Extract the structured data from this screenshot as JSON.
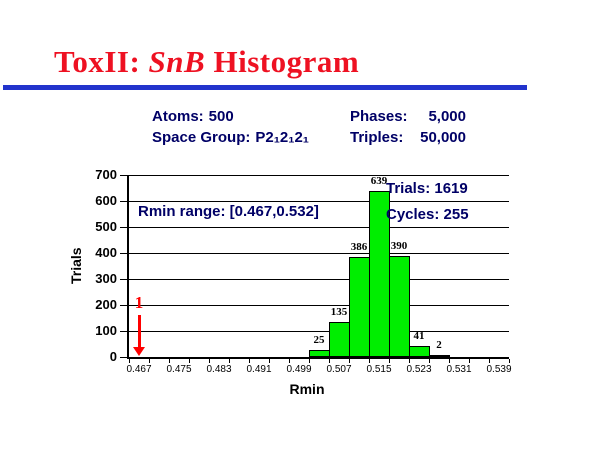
{
  "colors": {
    "bar-green": "#00EE00",
    "arrow-red": "#FF0000",
    "text-navy": "#000066",
    "title-red": "#EE1122",
    "rule-blue": "#2233CC"
  },
  "slide": {
    "title": {
      "prefix": "ToxII: ",
      "emphasis": "SnB",
      "suffix": " Histogram"
    },
    "params": {
      "left": [
        {
          "label": "Atoms:",
          "value": "500"
        },
        {
          "label": "Space Group:",
          "value": "P2₁2₁2₁"
        }
      ],
      "right": [
        {
          "label": "Phases:",
          "value": "5,000"
        },
        {
          "label": "Triples:",
          "value": "50,000"
        }
      ]
    }
  },
  "chart_data": {
    "type": "bar",
    "title": "",
    "xlabel": "Rmin",
    "ylabel": "Trials",
    "ylim": [
      0,
      700
    ],
    "yticks": [
      0,
      100,
      200,
      300,
      400,
      500,
      600,
      700
    ],
    "grid": true,
    "legend": null,
    "bin_start": 0.467,
    "bin_step": 0.004,
    "bin_count": 19,
    "x_tick_labels": [
      "0.467",
      "0.475",
      "0.483",
      "0.491",
      "0.499",
      "0.507",
      "0.515",
      "0.523",
      "0.531",
      "0.539"
    ],
    "bars": [
      {
        "x": 0.503,
        "bin_index": 9,
        "value": 25
      },
      {
        "x": 0.507,
        "bin_index": 10,
        "value": 135
      },
      {
        "x": 0.511,
        "bin_index": 11,
        "value": 386
      },
      {
        "x": 0.515,
        "bin_index": 12,
        "value": 639
      },
      {
        "x": 0.519,
        "bin_index": 13,
        "value": 390
      },
      {
        "x": 0.523,
        "bin_index": 14,
        "value": 41
      },
      {
        "x": 0.527,
        "bin_index": 15,
        "value": 2
      }
    ],
    "annotation": {
      "x": 0.467,
      "bin_index": 0,
      "label": "1"
    },
    "overlays": {
      "rmin_range": "Rmin range: [0.467,0.532]",
      "trials": "Trials: 1619",
      "cycles": "Cycles: 255"
    }
  }
}
